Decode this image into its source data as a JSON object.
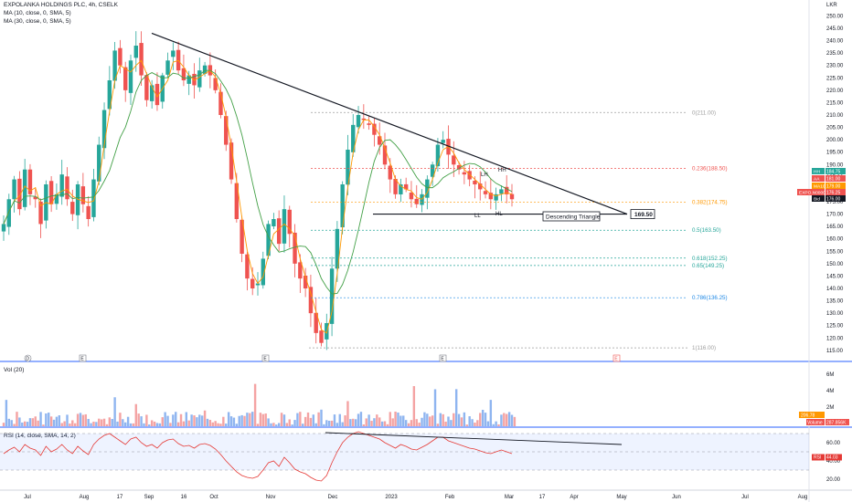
{
  "header": {
    "title": "EXPOLANKA HOLDINGS PLC, 4h, CSELK",
    "ma10_label": "MA (10, close, 0, SMA, 5)",
    "ma30_label": "MA (30, close, 0, SMA, 5)",
    "currency": "LKR"
  },
  "colors": {
    "up": "#26a69a",
    "down": "#ef5350",
    "ma10": "#ff9800",
    "ma30": "#43a047",
    "trendline": "#131722",
    "rsi": "#e53935",
    "vol_up": "#8fb5f0",
    "vol_down": "#f4a3a3",
    "fib_red": "#ef5350",
    "fib_orange": "#ff9800",
    "fib_teal": "#26a69a",
    "fib_blue": "#1e88e5",
    "fib_gray": "#9e9e9e"
  },
  "chart_data": [
    {
      "type": "candlestick",
      "pane": "price",
      "y_ticks": [
        250,
        245,
        240,
        235,
        230,
        225,
        220,
        215,
        210,
        205,
        200,
        195,
        190,
        185,
        180,
        175,
        170,
        165,
        160,
        155,
        150,
        145,
        140,
        135,
        130,
        125,
        120,
        115
      ],
      "ylim": [
        112,
        252
      ],
      "x_ticks": [
        "Jul",
        "Aug",
        "17",
        "Sep",
        "16",
        "Oct",
        "Nov",
        "Dec",
        "2023",
        "Feb",
        "Mar",
        "17",
        "Apr",
        "May",
        "Jun",
        "Jul",
        "Aug"
      ],
      "close_path": [
        166,
        176,
        184,
        172,
        188,
        178,
        176,
        166,
        182,
        174,
        178,
        186,
        176,
        170,
        182,
        174,
        168,
        184,
        198,
        212,
        224,
        236,
        230,
        220,
        232,
        238,
        226,
        216,
        222,
        214,
        226,
        232,
        236,
        228,
        224,
        226,
        222,
        228,
        230,
        226,
        220,
        210,
        198,
        184,
        168,
        154,
        144,
        140,
        142,
        152,
        166,
        168,
        158,
        172,
        162,
        150,
        144,
        140,
        130,
        122,
        118,
        126,
        148,
        164,
        182,
        196,
        206,
        210,
        208,
        206,
        202,
        198,
        190,
        184,
        178,
        182,
        180,
        176,
        174,
        178,
        184,
        190,
        198,
        200,
        194,
        190,
        188,
        186,
        184,
        182,
        180,
        178,
        176,
        178,
        180,
        178,
        176
      ],
      "price_tags": [
        {
          "label": "HH",
          "value": "184.75"
        },
        {
          "label": "AA",
          "value": "181.00"
        },
        {
          "label": "MA10",
          "value": "179.00"
        },
        {
          "label": "EXPO.N0000",
          "value": "176.25"
        },
        {
          "label": "Bid",
          "value": "176.00"
        }
      ],
      "trendline_upper": {
        "from_value": 243,
        "to_value": 170
      },
      "support_value": 170,
      "support_tag": "169.50",
      "pattern_label": "Descending Triangle",
      "swing_labels": [
        "LH",
        "HH",
        "LL",
        "HL"
      ],
      "fibonacci": [
        {
          "ratio": "0",
          "value": 211.0,
          "label": "0(211.00)"
        },
        {
          "ratio": "0.236",
          "value": 188.5,
          "label": "0.236(188.50)"
        },
        {
          "ratio": "0.382",
          "value": 174.75,
          "label": "0.382(174.75)"
        },
        {
          "ratio": "0.5",
          "value": 163.5,
          "label": "0.5(163.50)"
        },
        {
          "ratio": "0.618",
          "value": 152.25,
          "label": "0.618(152.25)"
        },
        {
          "ratio": "0.65",
          "value": 149.25,
          "label": "0.65(149.25)"
        },
        {
          "ratio": "0.786",
          "value": 136.25,
          "label": "0.786(136.25)"
        },
        {
          "ratio": "1",
          "value": 116.0,
          "label": "1(116.00)"
        }
      ],
      "event_markers": [
        "D",
        "E",
        "E",
        "E",
        "E"
      ]
    },
    {
      "type": "bar",
      "pane": "volume",
      "label": "Vol (20)",
      "y_ticks": [
        "6M",
        "4M",
        "2M"
      ],
      "ylim": [
        0,
        7
      ],
      "value_tag_a": "206.78",
      "value_tag_b": "287.856K",
      "volume_label": "Volume"
    },
    {
      "type": "line",
      "pane": "rsi",
      "label": "RSI (14, close, SMA, 14, 2)",
      "y_ticks": [
        60.0,
        40.0,
        20.0
      ],
      "ylim": [
        10,
        75
      ],
      "band": [
        30,
        70
      ],
      "current_tag": "44.03",
      "current_label": "RSI",
      "values": [
        48,
        52,
        55,
        50,
        58,
        54,
        52,
        46,
        56,
        50,
        53,
        58,
        52,
        48,
        56,
        51,
        47,
        58,
        64,
        68,
        70,
        66,
        62,
        58,
        64,
        66,
        60,
        56,
        58,
        54,
        60,
        63,
        64,
        59,
        56,
        57,
        54,
        58,
        59,
        57,
        53,
        47,
        40,
        34,
        28,
        24,
        22,
        21,
        23,
        30,
        38,
        40,
        34,
        44,
        38,
        31,
        28,
        26,
        22,
        19,
        18,
        24,
        38,
        50,
        60,
        66,
        70,
        72,
        70,
        68,
        66,
        64,
        60,
        57,
        54,
        58,
        56,
        53,
        52,
        55,
        58,
        62,
        66,
        66,
        62,
        60,
        58,
        56,
        54,
        53,
        51,
        49,
        48,
        50,
        52,
        50,
        48
      ]
    }
  ]
}
